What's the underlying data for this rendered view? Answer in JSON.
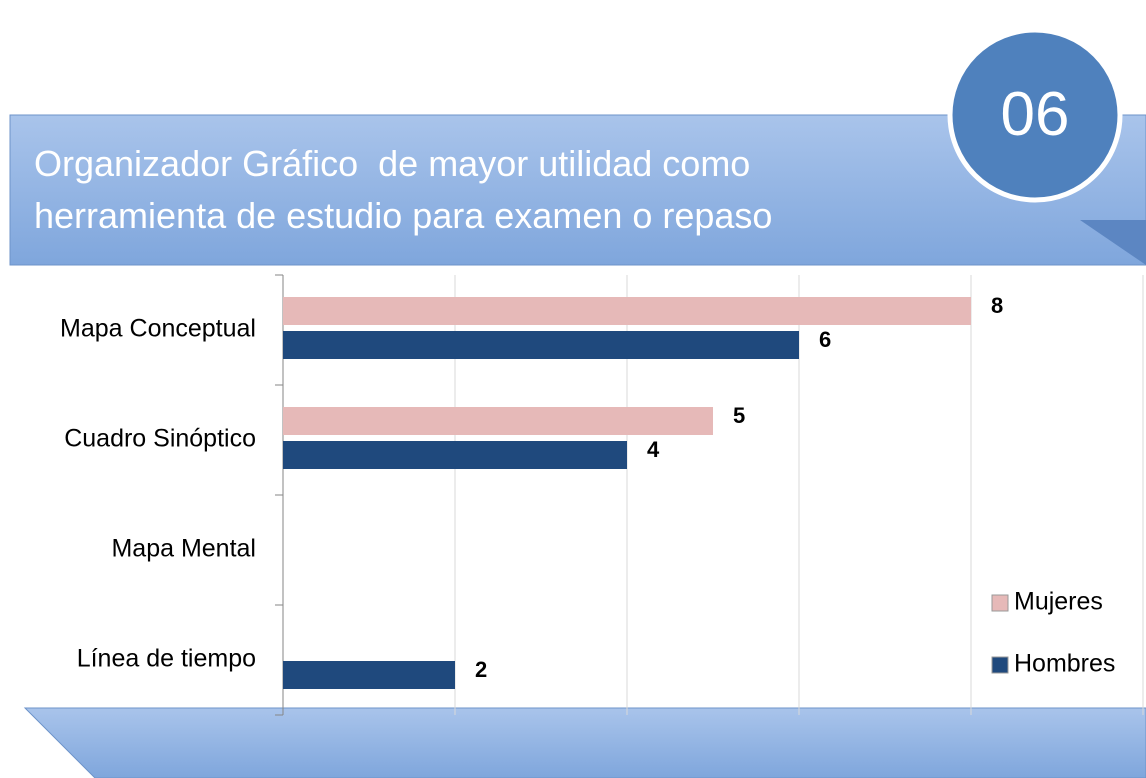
{
  "badge": "06",
  "chart_data": {
    "type": "barh",
    "title": "Organizador Gráfico  de mayor utilidad como herramienta de estudio para examen o repaso",
    "categories": [
      "Mapa Conceptual",
      "Cuadro Sinóptico",
      "Mapa Mental",
      "Línea de tiempo"
    ],
    "series": [
      {
        "name": "Mujeres",
        "color": "#e6b9b8",
        "values": [
          8,
          5,
          null,
          null
        ]
      },
      {
        "name": "Hombres",
        "color": "#1f497d",
        "values": [
          6,
          4,
          null,
          2
        ]
      }
    ],
    "xlim": [
      0,
      10
    ],
    "xticks": [
      0,
      2,
      4,
      6,
      8,
      10
    ],
    "grid": true,
    "legend": "lower right"
  }
}
